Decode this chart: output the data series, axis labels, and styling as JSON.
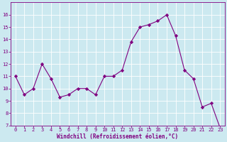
{
  "x": [
    0,
    1,
    2,
    3,
    4,
    5,
    6,
    7,
    8,
    9,
    10,
    11,
    12,
    13,
    14,
    15,
    16,
    17,
    18,
    19,
    20,
    21,
    22,
    23
  ],
  "y": [
    11,
    9.5,
    10,
    12,
    10.8,
    9.3,
    9.5,
    10,
    10,
    9.5,
    11,
    11,
    11.5,
    13.8,
    15,
    15.2,
    15.5,
    16,
    14.3,
    11.5,
    10.8,
    8.5,
    8.8,
    6.8
  ],
  "line_color": "#800080",
  "marker": "D",
  "marker_size": 2.2,
  "bg_color": "#cce9f0",
  "grid_color": "#ffffff",
  "xlabel": "Windchill (Refroidissement éolien,°C)",
  "xlabel_color": "#800080",
  "tick_color": "#800080",
  "spine_color": "#800080",
  "ylim": [
    7,
    17
  ],
  "xlim": [
    -0.5,
    23.5
  ],
  "yticks": [
    7,
    8,
    9,
    10,
    11,
    12,
    13,
    14,
    15,
    16
  ],
  "xticks": [
    0,
    1,
    2,
    3,
    4,
    5,
    6,
    7,
    8,
    9,
    10,
    11,
    12,
    13,
    14,
    15,
    16,
    17,
    18,
    19,
    20,
    21,
    22,
    23
  ],
  "tick_fontsize": 5.0,
  "xlabel_fontsize": 5.5
}
